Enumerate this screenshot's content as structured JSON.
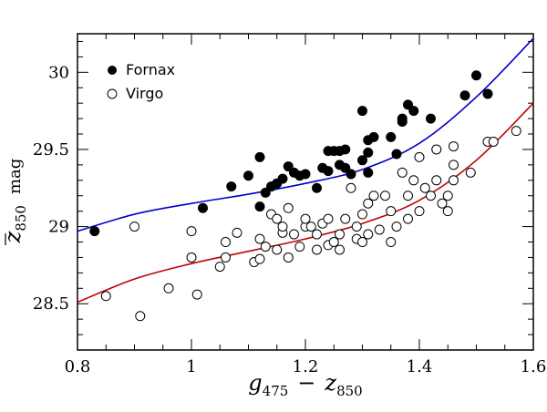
{
  "chart_data": {
    "type": "scatter",
    "title": "",
    "xlabel": {
      "var": "g",
      "sub": "475",
      "op": "−",
      "var2": "z",
      "sub2": "850"
    },
    "ylabel": {
      "var": "z",
      "sub": "850",
      "unit": "mag"
    },
    "xlim": [
      0.8,
      1.6
    ],
    "ylim": [
      28.2,
      30.25
    ],
    "x_ticks": [
      "0.8",
      "1",
      "1.2",
      "1.4",
      "1.6"
    ],
    "y_ticks": [
      "28.5",
      "29",
      "29.5",
      "30"
    ],
    "legend_position": "top-left",
    "series": [
      {
        "name": "Fornax",
        "marker": "filled-circle",
        "color": "#000000",
        "points": [
          [
            0.83,
            28.97
          ],
          [
            1.02,
            29.12
          ],
          [
            1.07,
            29.26
          ],
          [
            1.1,
            29.33
          ],
          [
            1.12,
            29.13
          ],
          [
            1.12,
            29.45
          ],
          [
            1.13,
            29.22
          ],
          [
            1.14,
            29.26
          ],
          [
            1.15,
            29.28
          ],
          [
            1.16,
            29.31
          ],
          [
            1.17,
            29.39
          ],
          [
            1.18,
            29.35
          ],
          [
            1.19,
            29.33
          ],
          [
            1.2,
            29.34
          ],
          [
            1.22,
            29.25
          ],
          [
            1.23,
            29.38
          ],
          [
            1.24,
            29.36
          ],
          [
            1.24,
            29.49
          ],
          [
            1.25,
            29.49
          ],
          [
            1.26,
            29.49
          ],
          [
            1.26,
            29.4
          ],
          [
            1.27,
            29.38
          ],
          [
            1.27,
            29.5
          ],
          [
            1.28,
            29.34
          ],
          [
            1.3,
            29.75
          ],
          [
            1.3,
            29.43
          ],
          [
            1.31,
            29.48
          ],
          [
            1.31,
            29.56
          ],
          [
            1.32,
            29.58
          ],
          [
            1.35,
            29.58
          ],
          [
            1.36,
            29.47
          ],
          [
            1.37,
            29.68
          ],
          [
            1.37,
            29.7
          ],
          [
            1.38,
            29.79
          ],
          [
            1.39,
            29.75
          ],
          [
            1.42,
            29.7
          ],
          [
            1.48,
            29.85
          ],
          [
            1.5,
            29.98
          ],
          [
            1.52,
            29.86
          ],
          [
            1.31,
            29.35
          ]
        ]
      },
      {
        "name": "Virgo",
        "marker": "open-circle",
        "color": "#000000",
        "points": [
          [
            0.85,
            28.55
          ],
          [
            0.9,
            29.0
          ],
          [
            0.91,
            28.42
          ],
          [
            0.96,
            28.6
          ],
          [
            1.0,
            28.97
          ],
          [
            1.0,
            28.8
          ],
          [
            1.01,
            28.56
          ],
          [
            1.05,
            28.74
          ],
          [
            1.06,
            28.8
          ],
          [
            1.06,
            28.9
          ],
          [
            1.08,
            28.96
          ],
          [
            1.11,
            28.77
          ],
          [
            1.12,
            28.79
          ],
          [
            1.12,
            28.92
          ],
          [
            1.13,
            28.87
          ],
          [
            1.14,
            29.08
          ],
          [
            1.15,
            28.85
          ],
          [
            1.15,
            29.05
          ],
          [
            1.16,
            28.96
          ],
          [
            1.16,
            29.0
          ],
          [
            1.17,
            29.12
          ],
          [
            1.17,
            28.8
          ],
          [
            1.18,
            28.95
          ],
          [
            1.19,
            28.87
          ],
          [
            1.2,
            29.0
          ],
          [
            1.2,
            29.05
          ],
          [
            1.21,
            29.0
          ],
          [
            1.22,
            28.95
          ],
          [
            1.22,
            28.85
          ],
          [
            1.23,
            29.02
          ],
          [
            1.24,
            29.05
          ],
          [
            1.24,
            28.88
          ],
          [
            1.25,
            28.9
          ],
          [
            1.26,
            28.85
          ],
          [
            1.26,
            28.95
          ],
          [
            1.27,
            29.05
          ],
          [
            1.28,
            29.25
          ],
          [
            1.29,
            29.0
          ],
          [
            1.29,
            28.92
          ],
          [
            1.3,
            28.9
          ],
          [
            1.3,
            29.08
          ],
          [
            1.31,
            29.15
          ],
          [
            1.31,
            28.95
          ],
          [
            1.32,
            29.2
          ],
          [
            1.33,
            28.98
          ],
          [
            1.34,
            29.2
          ],
          [
            1.35,
            28.9
          ],
          [
            1.35,
            29.1
          ],
          [
            1.36,
            29.0
          ],
          [
            1.37,
            29.35
          ],
          [
            1.38,
            29.05
          ],
          [
            1.38,
            29.2
          ],
          [
            1.39,
            29.3
          ],
          [
            1.4,
            29.45
          ],
          [
            1.4,
            29.1
          ],
          [
            1.41,
            29.25
          ],
          [
            1.42,
            29.2
          ],
          [
            1.43,
            29.5
          ],
          [
            1.43,
            29.3
          ],
          [
            1.44,
            29.15
          ],
          [
            1.45,
            29.2
          ],
          [
            1.45,
            29.1
          ],
          [
            1.46,
            29.3
          ],
          [
            1.46,
            29.4
          ],
          [
            1.46,
            29.52
          ],
          [
            1.49,
            29.35
          ],
          [
            1.52,
            29.55
          ],
          [
            1.53,
            29.55
          ],
          [
            1.57,
            29.62
          ]
        ]
      }
    ],
    "fit_curves": [
      {
        "color": "#0000cc",
        "points": [
          [
            0.8,
            28.97
          ],
          [
            0.9,
            29.08
          ],
          [
            1.0,
            29.15
          ],
          [
            1.1,
            29.21
          ],
          [
            1.2,
            29.28
          ],
          [
            1.3,
            29.37
          ],
          [
            1.4,
            29.54
          ],
          [
            1.5,
            29.84
          ],
          [
            1.6,
            30.22
          ]
        ]
      },
      {
        "color": "#c00000",
        "points": [
          [
            0.8,
            28.51
          ],
          [
            0.9,
            28.66
          ],
          [
            1.0,
            28.76
          ],
          [
            1.1,
            28.84
          ],
          [
            1.2,
            28.92
          ],
          [
            1.3,
            29.02
          ],
          [
            1.4,
            29.17
          ],
          [
            1.5,
            29.43
          ],
          [
            1.6,
            29.8
          ]
        ]
      }
    ]
  }
}
